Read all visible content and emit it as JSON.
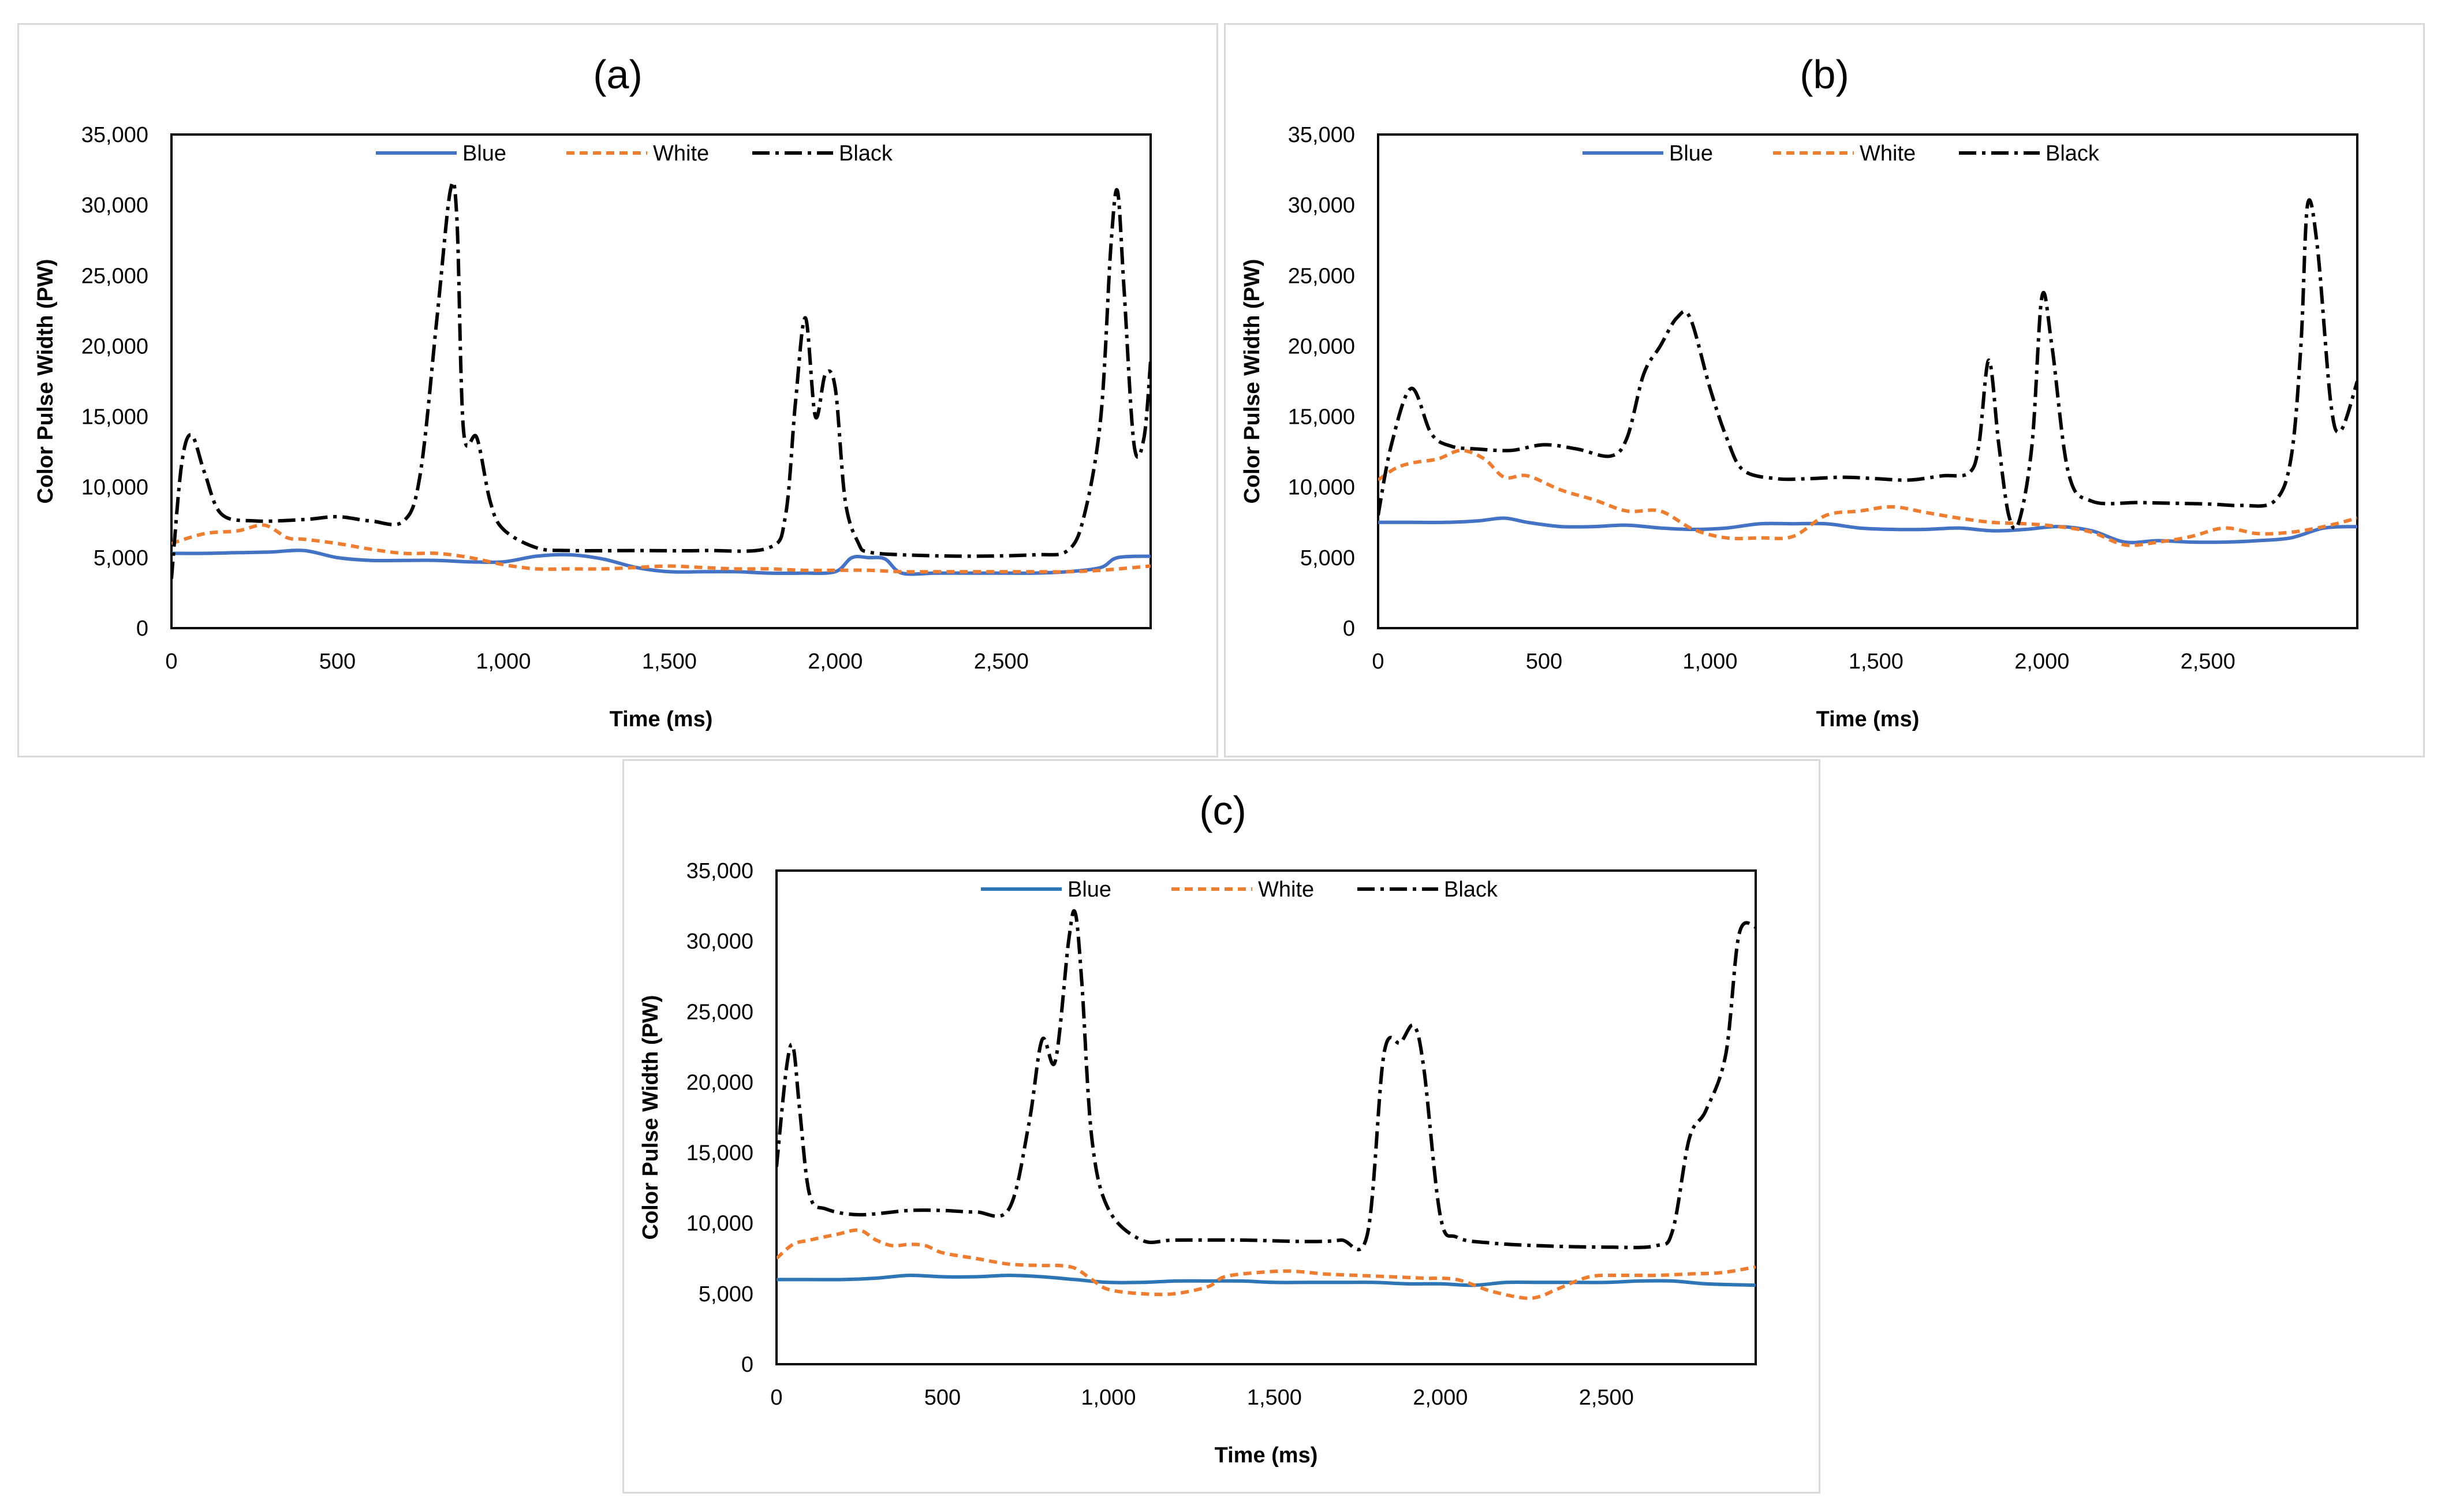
{
  "colors": {
    "blue": "#4472c4",
    "blue_c": "#2e75b6",
    "white": "#ed7d31",
    "black": "#000000",
    "frame": "#d9d9d9"
  },
  "chart_data": [
    {
      "type": "line",
      "title": "(a)",
      "xlabel": "Time (ms)",
      "ylabel": "Color Pulse Width (PW)",
      "xlim": [
        0,
        2950
      ],
      "ylim": [
        0,
        35000
      ],
      "xticks": [
        0,
        500,
        1000,
        1500,
        2000,
        2500
      ],
      "xtick_labels": [
        "0",
        "500",
        "1,000",
        "1,500",
        "2,000",
        "2,500"
      ],
      "yticks": [
        0,
        5000,
        10000,
        15000,
        20000,
        25000,
        30000,
        35000
      ],
      "ytick_labels": [
        "0",
        "5,000",
        "10,000",
        "15,000",
        "20,000",
        "25,000",
        "30,000",
        "35,000"
      ],
      "legend_position": "top",
      "series": [
        {
          "name": "Blue",
          "style": "solid",
          "color": "#4472c4",
          "x": [
            0,
            100,
            200,
            300,
            400,
            500,
            600,
            700,
            800,
            900,
            1000,
            1100,
            1200,
            1300,
            1400,
            1500,
            1600,
            1700,
            1800,
            1900,
            2000,
            2050,
            2100,
            2150,
            2200,
            2300,
            2400,
            2500,
            2600,
            2700,
            2800,
            2850,
            2950
          ],
          "y": [
            5300,
            5300,
            5350,
            5400,
            5500,
            5000,
            4800,
            4800,
            4800,
            4700,
            4700,
            5100,
            5200,
            4900,
            4300,
            4000,
            4000,
            4000,
            3900,
            3900,
            4000,
            5000,
            5000,
            4900,
            3900,
            3900,
            3900,
            3900,
            3900,
            4000,
            4300,
            5000,
            5100
          ]
        },
        {
          "name": "White",
          "style": "dashed",
          "color": "#ed7d31",
          "x": [
            0,
            100,
            200,
            280,
            350,
            400,
            500,
            600,
            700,
            800,
            900,
            1000,
            1100,
            1200,
            1300,
            1400,
            1500,
            1600,
            1700,
            1800,
            1900,
            2000,
            2100,
            2200,
            2300,
            2400,
            2500,
            2600,
            2700,
            2800,
            2950
          ],
          "y": [
            6000,
            6700,
            6900,
            7300,
            6400,
            6300,
            6000,
            5600,
            5300,
            5300,
            5000,
            4500,
            4200,
            4200,
            4200,
            4300,
            4400,
            4300,
            4200,
            4200,
            4100,
            4100,
            4100,
            4000,
            4000,
            4000,
            4000,
            4000,
            4000,
            4100,
            4400
          ]
        },
        {
          "name": "Black",
          "style": "dashdot",
          "color": "#000000",
          "x": [
            0,
            30,
            60,
            100,
            150,
            250,
            400,
            500,
            600,
            700,
            750,
            800,
            840,
            860,
            880,
            920,
            960,
            1000,
            1100,
            1200,
            1400,
            1600,
            1800,
            1850,
            1880,
            1910,
            1940,
            1970,
            2000,
            2030,
            2070,
            2100,
            2200,
            2400,
            2600,
            2700,
            2750,
            2800,
            2830,
            2850,
            2870,
            2900,
            2930,
            2950
          ],
          "y": [
            3500,
            11500,
            13700,
            11000,
            8100,
            7600,
            7700,
            7900,
            7600,
            7600,
            11000,
            22000,
            31000,
            29000,
            14000,
            13500,
            9000,
            7000,
            5700,
            5500,
            5500,
            5500,
            5700,
            8000,
            16000,
            22000,
            15000,
            18000,
            17000,
            9000,
            6000,
            5400,
            5200,
            5100,
            5200,
            5500,
            8000,
            15000,
            27000,
            31000,
            24000,
            13000,
            13500,
            19000
          ]
        }
      ]
    },
    {
      "type": "line",
      "title": "(b)",
      "xlabel": "Time (ms)",
      "ylabel": "Color Pulse Width (PW)",
      "xlim": [
        0,
        2950
      ],
      "ylim": [
        0,
        35000
      ],
      "xticks": [
        0,
        500,
        1000,
        1500,
        2000,
        2500
      ],
      "xtick_labels": [
        "0",
        "500",
        "1,000",
        "1,500",
        "2,000",
        "2,500"
      ],
      "yticks": [
        0,
        5000,
        10000,
        15000,
        20000,
        25000,
        30000,
        35000
      ],
      "ytick_labels": [
        "0",
        "5,000",
        "10,000",
        "15,000",
        "20,000",
        "25,000",
        "30,000",
        "35,000"
      ],
      "legend_position": "top",
      "series": [
        {
          "name": "Blue",
          "style": "solid",
          "color": "#4472c4",
          "x": [
            0,
            100,
            200,
            300,
            380,
            450,
            550,
            650,
            750,
            850,
            950,
            1050,
            1150,
            1250,
            1350,
            1450,
            1550,
            1650,
            1750,
            1850,
            1950,
            2050,
            2150,
            2250,
            2350,
            2450,
            2550,
            2650,
            2750,
            2850,
            2950
          ],
          "y": [
            7500,
            7500,
            7500,
            7600,
            7800,
            7500,
            7200,
            7200,
            7300,
            7100,
            7000,
            7100,
            7400,
            7400,
            7400,
            7100,
            7000,
            7000,
            7100,
            6900,
            7000,
            7200,
            6900,
            6100,
            6200,
            6100,
            6100,
            6200,
            6400,
            7100,
            7200
          ]
        },
        {
          "name": "White",
          "style": "dashed",
          "color": "#ed7d31",
          "x": [
            0,
            50,
            100,
            180,
            250,
            320,
            380,
            450,
            550,
            650,
            750,
            850,
            950,
            1050,
            1150,
            1250,
            1350,
            1450,
            1550,
            1650,
            1750,
            1850,
            1950,
            2050,
            2150,
            2250,
            2350,
            2450,
            2550,
            2650,
            2750,
            2850,
            2950
          ],
          "y": [
            10500,
            11300,
            11700,
            12000,
            12600,
            12000,
            10700,
            10800,
            9800,
            9100,
            8300,
            8300,
            7000,
            6400,
            6400,
            6500,
            8000,
            8300,
            8600,
            8200,
            7800,
            7500,
            7400,
            7200,
            6800,
            5900,
            6100,
            6500,
            7100,
            6700,
            6800,
            7200,
            7800
          ]
        },
        {
          "name": "Black",
          "style": "dashdot",
          "color": "#000000",
          "x": [
            0,
            40,
            100,
            160,
            220,
            300,
            400,
            500,
            600,
            700,
            750,
            800,
            850,
            900,
            940,
            1000,
            1050,
            1100,
            1200,
            1300,
            1400,
            1500,
            1600,
            1700,
            1780,
            1810,
            1840,
            1870,
            1900,
            1930,
            1970,
            2000,
            2030,
            2080,
            2150,
            2300,
            2500,
            2600,
            2700,
            2750,
            2780,
            2800,
            2830,
            2870,
            2900,
            2950
          ],
          "y": [
            8000,
            13000,
            17000,
            13800,
            12900,
            12700,
            12600,
            13000,
            12700,
            12200,
            13500,
            18000,
            20000,
            22000,
            22000,
            17000,
            13500,
            11200,
            10600,
            10600,
            10700,
            10600,
            10500,
            10800,
            11000,
            13000,
            19000,
            13000,
            8000,
            7500,
            13000,
            23500,
            20000,
            11000,
            9000,
            8900,
            8800,
            8700,
            9000,
            12000,
            20000,
            30000,
            27000,
            16000,
            14000,
            17500
          ]
        }
      ]
    },
    {
      "type": "line",
      "title": "(c)",
      "xlabel": "Time (ms)",
      "ylabel": "Color Pulse Width (PW)",
      "xlim": [
        0,
        2950
      ],
      "ylim": [
        0,
        35000
      ],
      "xticks": [
        0,
        500,
        1000,
        1500,
        2000,
        2500
      ],
      "xtick_labels": [
        "0",
        "500",
        "1,000",
        "1,500",
        "2,000",
        "2,500"
      ],
      "yticks": [
        0,
        5000,
        10000,
        15000,
        20000,
        25000,
        30000,
        35000
      ],
      "ytick_labels": [
        "0",
        "5,000",
        "10,000",
        "15,000",
        "20,000",
        "25,000",
        "30,000",
        "35,000"
      ],
      "legend_position": "top",
      "series": [
        {
          "name": "Blue",
          "style": "solid",
          "color": "#2e75b6",
          "x": [
            0,
            100,
            200,
            300,
            400,
            500,
            600,
            700,
            800,
            900,
            1000,
            1100,
            1200,
            1300,
            1400,
            1500,
            1600,
            1700,
            1800,
            1900,
            2000,
            2100,
            2200,
            2300,
            2400,
            2500,
            2600,
            2700,
            2800,
            2950
          ],
          "y": [
            6000,
            6000,
            6000,
            6100,
            6300,
            6200,
            6200,
            6300,
            6200,
            6000,
            5800,
            5800,
            5900,
            5900,
            5900,
            5800,
            5800,
            5800,
            5800,
            5700,
            5700,
            5600,
            5800,
            5800,
            5800,
            5800,
            5900,
            5900,
            5700,
            5600
          ]
        },
        {
          "name": "White",
          "style": "dashed",
          "color": "#ed7d31",
          "x": [
            0,
            50,
            100,
            180,
            250,
            300,
            350,
            400,
            450,
            500,
            600,
            700,
            800,
            850,
            900,
            950,
            1000,
            1100,
            1200,
            1300,
            1350,
            1450,
            1550,
            1650,
            1750,
            1850,
            1950,
            2050,
            2150,
            2250,
            2300,
            2350,
            2450,
            2550,
            2650,
            2750,
            2850,
            2950
          ],
          "y": [
            7500,
            8500,
            8800,
            9200,
            9500,
            8800,
            8400,
            8500,
            8400,
            7900,
            7500,
            7100,
            7000,
            7000,
            6800,
            6000,
            5300,
            5000,
            5000,
            5500,
            6200,
            6500,
            6600,
            6400,
            6300,
            6200,
            6100,
            6000,
            5200,
            4700,
            4800,
            5300,
            6200,
            6300,
            6300,
            6400,
            6500,
            6900
          ]
        },
        {
          "name": "Black",
          "style": "dashdot",
          "color": "#000000",
          "x": [
            0,
            30,
            50,
            70,
            100,
            150,
            250,
            400,
            500,
            600,
            700,
            760,
            800,
            840,
            880,
            900,
            920,
            950,
            1000,
            1100,
            1200,
            1400,
            1600,
            1700,
            1780,
            1830,
            1880,
            1920,
            1950,
            2000,
            2050,
            2150,
            2300,
            2500,
            2650,
            2700,
            2750,
            2800,
            2860,
            2900,
            2950
          ],
          "y": [
            14000,
            21000,
            22500,
            18000,
            12000,
            11000,
            10600,
            10900,
            10900,
            10800,
            11000,
            17000,
            23000,
            21500,
            30000,
            32000,
            27000,
            16000,
            11000,
            8800,
            8800,
            8800,
            8700,
            8800,
            9200,
            22000,
            22800,
            24000,
            21000,
            10500,
            9000,
            8600,
            8400,
            8300,
            8400,
            9500,
            16000,
            18000,
            22000,
            30500,
            31000
          ]
        }
      ]
    }
  ]
}
